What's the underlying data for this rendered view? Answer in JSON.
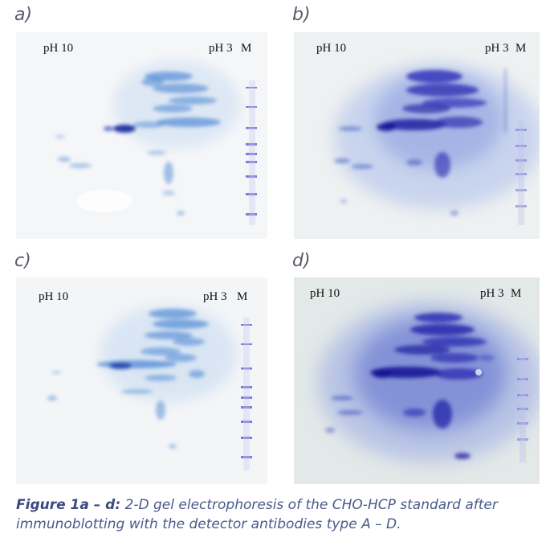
{
  "panels": [
    {
      "id": "a",
      "label": "a)",
      "left_text": "pH 10",
      "right_text": "pH 3",
      "marker_text": "M"
    },
    {
      "id": "b",
      "label": "b)",
      "left_text": "pH 10",
      "right_text": "pH 3",
      "marker_text": "M"
    },
    {
      "id": "c",
      "label": "c)",
      "left_text": "pH 10",
      "right_text": "pH 3",
      "marker_text": "M"
    },
    {
      "id": "d",
      "label": "d)",
      "left_text": "pH 10",
      "right_text": "pH 3",
      "marker_text": "M"
    }
  ],
  "caption": {
    "bold": "Figure 1a – d:",
    "text": " 2-D gel electrophoresis of the CHO-HCP standard after immunoblotting with the detector antibodies type A – D."
  },
  "colors": {
    "spot_light": "#3f7fd0",
    "spot_dark": "#2a2ab0",
    "marker": "#5a5ad0",
    "gel_bg": "#f4f5f7",
    "gel_bg_dark": "#e6ecec",
    "caption": "#4a5a8a"
  }
}
